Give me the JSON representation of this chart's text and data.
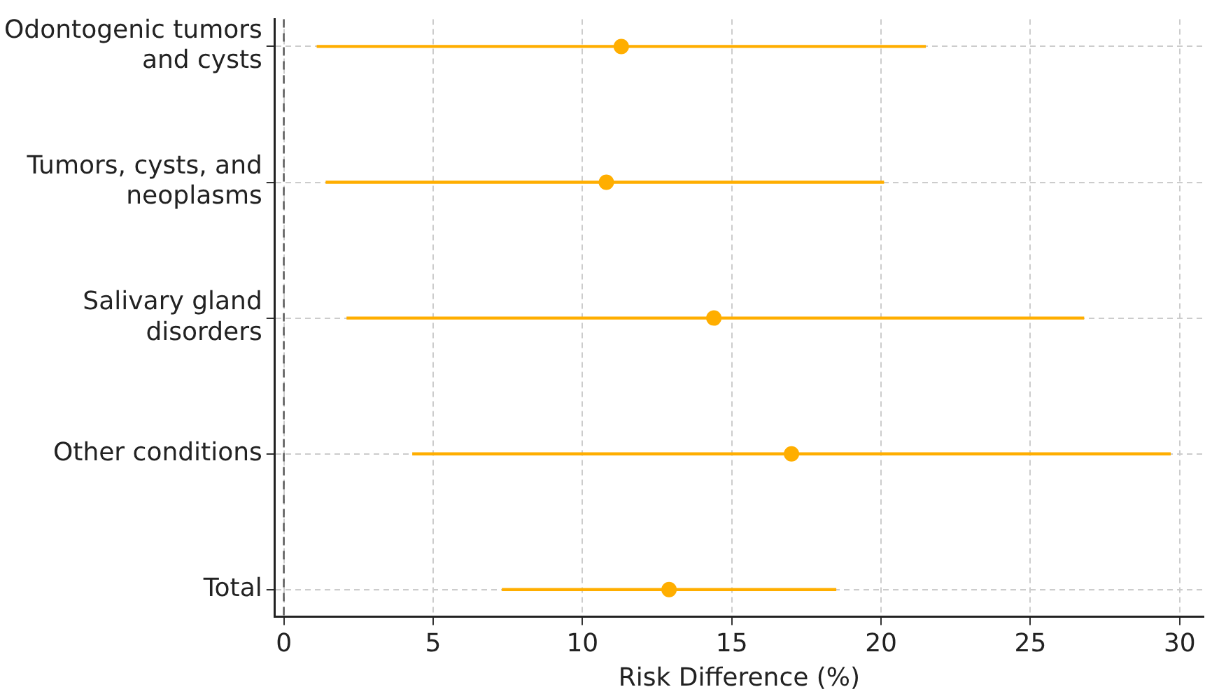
{
  "chart_data": {
    "type": "scatter",
    "orientation": "horizontal",
    "xlabel": "Risk Difference (%)",
    "categories": [
      "Odontogenic tumors and cysts",
      "Tumors, cysts, and neoplasms",
      "Salivary gland disorders",
      "Other conditions",
      "Total"
    ],
    "values": [
      11.3,
      10.8,
      14.4,
      17.0,
      12.9
    ],
    "errors": [
      [
        1.1,
        21.5
      ],
      [
        1.4,
        20.1
      ],
      [
        2.1,
        26.8
      ],
      [
        4.3,
        29.7
      ],
      [
        7.3,
        18.5
      ]
    ],
    "color": "#ffae00",
    "marker": "circle",
    "grid": true,
    "xlim": [
      -0.3,
      30.8
    ],
    "xticks": [
      0,
      5,
      10,
      15,
      20,
      25,
      30
    ],
    "ref_lines": [
      {
        "axis": "x",
        "value": 0,
        "color": "#555555",
        "line_style": "dashed"
      }
    ]
  }
}
